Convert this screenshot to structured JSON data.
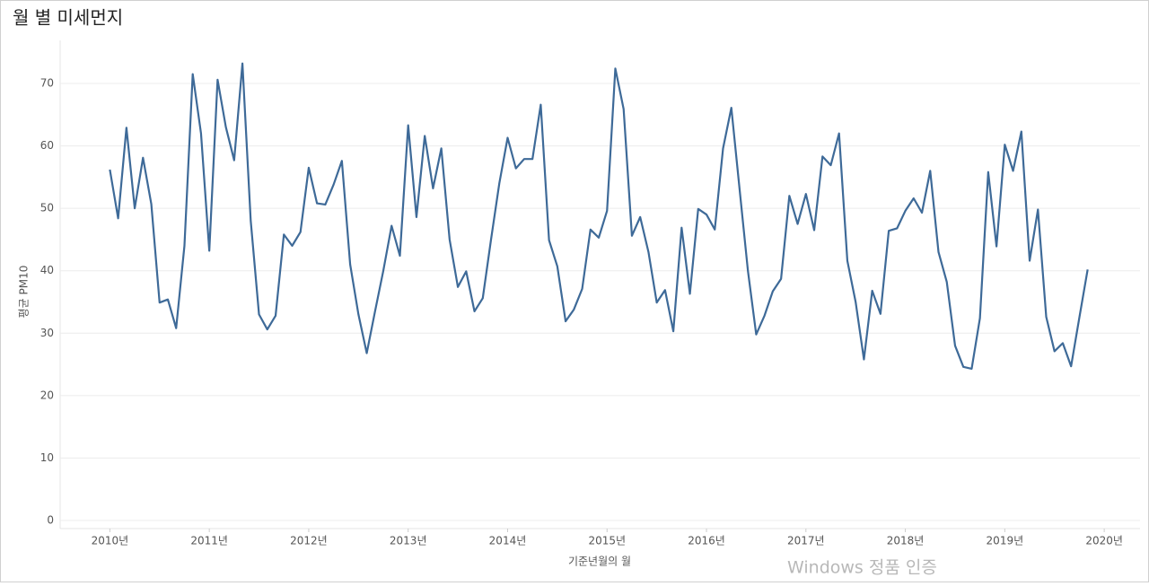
{
  "chart_data": {
    "type": "line",
    "title": "월 별 미세먼지",
    "x_label": "기준년월의 월",
    "y_label": "평균 PM10",
    "watermark": "Windows 정품 인증",
    "color": "#3e6a98",
    "grid": true,
    "x": [
      2010,
      2010.0833,
      2010.1667,
      2010.25,
      2010.3333,
      2010.4167,
      2010.5,
      2010.5833,
      2010.6667,
      2010.75,
      2010.8333,
      2010.9167,
      2011,
      2011.0833,
      2011.1667,
      2011.25,
      2011.3333,
      2011.4167,
      2011.5,
      2011.5833,
      2011.6667,
      2011.75,
      2011.8333,
      2011.9167,
      2012,
      2012.0833,
      2012.1667,
      2012.25,
      2012.3333,
      2012.4167,
      2012.5,
      2012.5833,
      2012.6667,
      2012.75,
      2012.8333,
      2012.9167,
      2013,
      2013.0833,
      2013.1667,
      2013.25,
      2013.3333,
      2013.4167,
      2013.5,
      2013.5833,
      2013.6667,
      2013.75,
      2013.8333,
      2013.9167,
      2014,
      2014.0833,
      2014.1667,
      2014.25,
      2014.3333,
      2014.4167,
      2014.5,
      2014.5833,
      2014.6667,
      2014.75,
      2014.8333,
      2014.9167,
      2015,
      2015.0833,
      2015.1667,
      2015.25,
      2015.3333,
      2015.4167,
      2015.5,
      2015.5833,
      2015.6667,
      2015.75,
      2015.8333,
      2015.9167,
      2016,
      2016.0833,
      2016.1667,
      2016.25,
      2016.3333,
      2016.4167,
      2016.5,
      2016.5833,
      2016.6667,
      2016.75,
      2016.8333,
      2016.9167,
      2017,
      2017.0833,
      2017.1667,
      2017.25,
      2017.3333,
      2017.4167,
      2017.5,
      2017.5833,
      2017.6667,
      2017.75,
      2017.8333,
      2017.9167,
      2018,
      2018.0833,
      2018.1667,
      2018.25,
      2018.3333,
      2018.4167,
      2018.5,
      2018.5833,
      2018.6667,
      2018.75,
      2018.8333,
      2018.9167,
      2019,
      2019.0833,
      2019.1667,
      2019.25,
      2019.3333,
      2019.4167,
      2019.5,
      2019.5833,
      2019.6667,
      2019.75,
      2019.8333
    ],
    "values": [
      56.2,
      48.4,
      62.9,
      50,
      58.1,
      50.7,
      34.9,
      35.4,
      30.8,
      44,
      71.5,
      62,
      43.2,
      70.6,
      63,
      57.7,
      73.2,
      48,
      33,
      30.6,
      32.8,
      45.8,
      44,
      46.2,
      56.5,
      50.8,
      50.6,
      53.8,
      57.6,
      41,
      33,
      26.8,
      33.5,
      40,
      47.2,
      42.4,
      63.3,
      48.6,
      61.6,
      53.2,
      59.6,
      45,
      37.4,
      39.9,
      33.5,
      35.6,
      45,
      54,
      61.3,
      56.4,
      57.9,
      57.9,
      66.6,
      44.9,
      40.7,
      31.9,
      33.8,
      37.1,
      46.6,
      45.3,
      49.6,
      72.4,
      65.9,
      45.6,
      48.6,
      43,
      34.9,
      36.9,
      30.3,
      46.9,
      36.3,
      49.9,
      49,
      46.6,
      59.6,
      66.1,
      53,
      40,
      29.8,
      32.8,
      36.7,
      38.7,
      52,
      47.5,
      52.3,
      46.5,
      58.3,
      56.9,
      62,
      41.6,
      35,
      25.8,
      36.8,
      33.1,
      46.4,
      46.8,
      49.6,
      51.6,
      49.3,
      56,
      43,
      38.2,
      28,
      24.6,
      24.3,
      32.4,
      55.8,
      43.9,
      60.2,
      56,
      62.3,
      41.6,
      49.8,
      32.6,
      27.1,
      28.4,
      24.7,
      32.5,
      40.2
    ],
    "xlim": [
      2009.5,
      2020.36
    ],
    "ylim": [
      -1.3,
      76.9
    ],
    "xticks": [
      {
        "value": 2010,
        "label": "2010년"
      },
      {
        "value": 2011,
        "label": "2011년"
      },
      {
        "value": 2012,
        "label": "2012년"
      },
      {
        "value": 2013,
        "label": "2013년"
      },
      {
        "value": 2014,
        "label": "2014년"
      },
      {
        "value": 2015,
        "label": "2015년"
      },
      {
        "value": 2016,
        "label": "2016년"
      },
      {
        "value": 2017,
        "label": "2017년"
      },
      {
        "value": 2018,
        "label": "2018년"
      },
      {
        "value": 2019,
        "label": "2019년"
      },
      {
        "value": 2020,
        "label": "2020년"
      }
    ],
    "yticks": [
      0,
      10,
      20,
      30,
      40,
      50,
      60,
      70
    ]
  }
}
